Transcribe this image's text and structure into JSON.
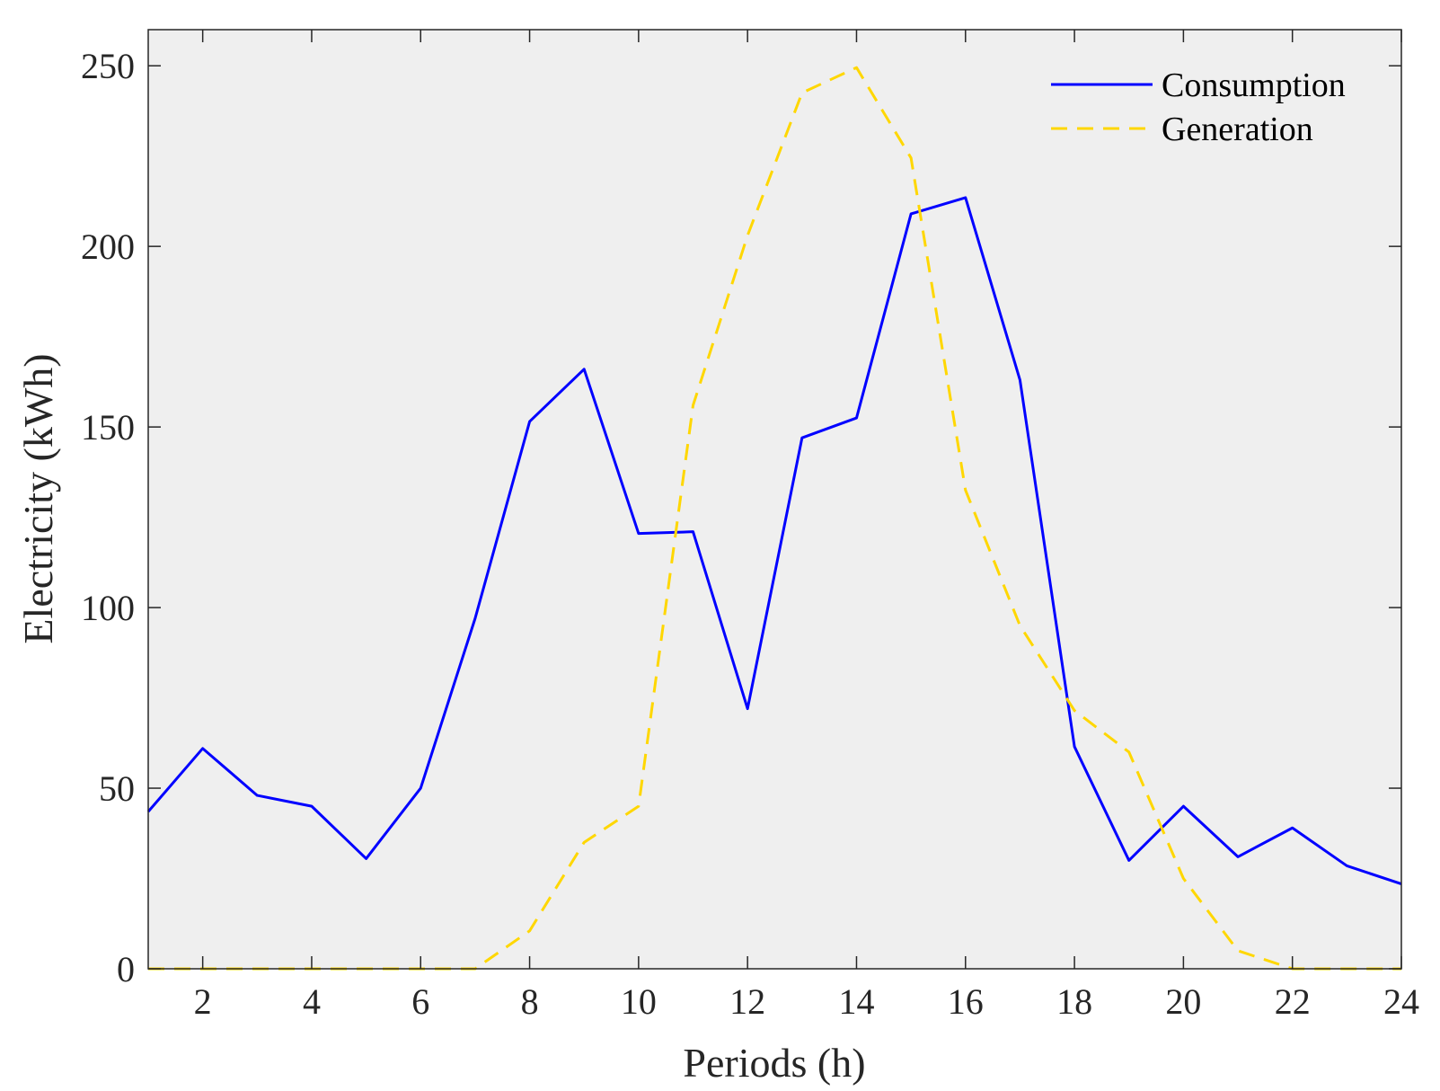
{
  "chart_data": {
    "type": "line",
    "title": "",
    "xlabel": "Periods (h)",
    "ylabel": "Electricity (kWh)",
    "xlim": [
      1,
      24
    ],
    "ylim": [
      0,
      260
    ],
    "x_ticks": [
      2,
      4,
      6,
      8,
      10,
      12,
      14,
      16,
      18,
      20,
      22,
      24
    ],
    "y_ticks": [
      0,
      50,
      100,
      150,
      200,
      250
    ],
    "grid": false,
    "legend_position": "top-right",
    "background_color": "#efefef",
    "x": [
      1,
      2,
      3,
      4,
      5,
      6,
      7,
      8,
      9,
      10,
      11,
      12,
      13,
      14,
      15,
      16,
      17,
      18,
      19,
      20,
      21,
      22,
      23,
      24
    ],
    "series": [
      {
        "name": "Consumption",
        "color": "#0000ff",
        "line_style": "solid",
        "values": [
          43.5,
          61,
          48,
          45,
          30.5,
          50,
          97,
          151.5,
          166,
          120.5,
          121,
          72,
          147,
          152.5,
          209,
          213.5,
          163,
          61.5,
          30,
          45,
          31,
          39,
          28.5,
          23.5
        ]
      },
      {
        "name": "Generation",
        "color": "#ffd700",
        "line_style": "dashed",
        "values": [
          0,
          0,
          0,
          0,
          0,
          0,
          0,
          10.5,
          35,
          45,
          156,
          203,
          242.5,
          249.5,
          224.5,
          132.5,
          95,
          71.5,
          60,
          25,
          5,
          0,
          0,
          0
        ]
      }
    ]
  }
}
